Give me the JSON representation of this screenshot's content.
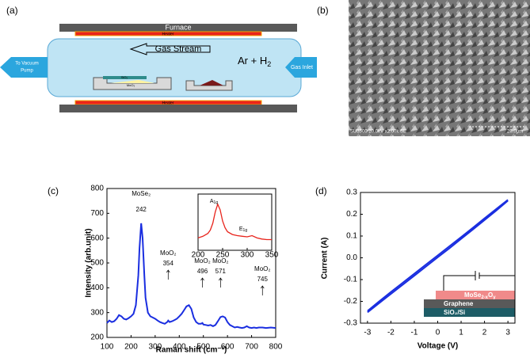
{
  "panel_labels": [
    "(a)",
    "(b)",
    "(c)",
    "(d)"
  ],
  "diagram": {
    "furnace": "Furnace",
    "heater_top": "Heater",
    "heater_bottom": "Heater",
    "gas_stream": "Gas Stream",
    "gas": {
      "base": "Ar + H",
      "sub": "2"
    },
    "inlet": "Gas Inlet",
    "outlet": [
      "To Vacuum",
      "Pump"
    ],
    "substrate": "SiO₂",
    "powder": "MoO₃"
  },
  "image": {
    "info": "SU3500 20.0kV x2.00k SE",
    "scale": "20.0μm"
  },
  "chart_data": [
    {
      "type": "line",
      "xlabel": "Raman shift (cm⁻¹)",
      "ylabel": "Intensity (arb.unit)",
      "color": "#1a2ee0",
      "xlim": [
        100,
        800
      ],
      "xticks": [
        100,
        200,
        300,
        400,
        500,
        600,
        700,
        800
      ],
      "ylim": [
        200,
        800
      ],
      "yticks": [
        200,
        300,
        400,
        500,
        600,
        700,
        800
      ],
      "x": [
        100,
        110,
        120,
        130,
        140,
        150,
        160,
        170,
        180,
        190,
        200,
        210,
        220,
        230,
        235,
        242,
        248,
        255,
        260,
        270,
        280,
        290,
        300,
        310,
        320,
        330,
        340,
        350,
        354,
        360,
        370,
        380,
        390,
        400,
        410,
        420,
        430,
        440,
        450,
        460,
        470,
        480,
        490,
        496,
        500,
        510,
        520,
        530,
        540,
        550,
        560,
        571,
        580,
        590,
        600,
        610,
        620,
        630,
        640,
        650,
        660,
        670,
        680,
        690,
        700,
        710,
        720,
        730,
        745,
        760,
        780,
        800
      ],
      "values": [
        258,
        268,
        262,
        265,
        275,
        290,
        285,
        275,
        272,
        278,
        285,
        295,
        330,
        450,
        560,
        660,
        600,
        450,
        360,
        300,
        285,
        280,
        275,
        268,
        262,
        258,
        255,
        262,
        268,
        262,
        265,
        270,
        275,
        285,
        295,
        310,
        325,
        330,
        315,
        280,
        262,
        255,
        255,
        258,
        252,
        250,
        248,
        250,
        245,
        250,
        265,
        282,
        285,
        280,
        262,
        250,
        245,
        240,
        242,
        240,
        238,
        240,
        245,
        240,
        238,
        240,
        238,
        240,
        240,
        238,
        240,
        238
      ],
      "annotations": [
        {
          "text": "MoSe₂",
          "x": 242
        },
        {
          "text": "MoO₂",
          "x": 354
        },
        {
          "text": "MoO₂",
          "x": 496
        },
        {
          "text": "MoO₂",
          "x": 571
        },
        {
          "text": "MoO₂",
          "x": 745
        }
      ],
      "inset": {
        "color": "#e8241c",
        "xlim": [
          200,
          350
        ],
        "xticks": [
          200,
          250,
          300,
          350
        ],
        "ylim": [
          0,
          100
        ],
        "x": [
          200,
          210,
          220,
          225,
          230,
          235,
          240,
          245,
          250,
          255,
          260,
          270,
          280,
          290,
          300,
          310,
          320,
          330,
          340,
          350
        ],
        "values": [
          22,
          25,
          30,
          36,
          48,
          68,
          82,
          72,
          52,
          40,
          33,
          28,
          26,
          25,
          24,
          26,
          22,
          20,
          19,
          19
        ],
        "peaks": [
          {
            "base": "A",
            "sub": "1g"
          },
          {
            "base": "E",
            "sub": "1g"
          }
        ]
      }
    },
    {
      "type": "line",
      "xlabel": "Voltage (V)",
      "ylabel": "Current (A)",
      "color": "#1a2ee0",
      "xlim": [
        -3.3,
        3.3
      ],
      "xticks": [
        -3,
        -2,
        -1,
        0,
        1,
        2,
        3
      ],
      "ylim": [
        -0.3,
        0.3
      ],
      "yticks": [
        -0.3,
        -0.2,
        -0.1,
        {
          "value": 0,
          "label": "0.0"
        },
        0.1,
        0.2,
        0.3
      ],
      "x": [
        -3,
        -2.5,
        -2,
        -1.5,
        -1,
        -0.5,
        0,
        0.5,
        1,
        1.5,
        2,
        2.5,
        3
      ],
      "series": [
        {
          "color": "#1a2ee0",
          "values": [
            -0.25,
            -0.208,
            -0.166,
            -0.124,
            -0.082,
            -0.04,
            0.002,
            0.044,
            0.087,
            0.13,
            0.173,
            0.217,
            0.262
          ]
        },
        {
          "color": "#1a2ee0",
          "values": [
            -0.244,
            -0.2,
            -0.157,
            -0.115,
            -0.073,
            -0.031,
            0.011,
            0.053,
            0.095,
            0.138,
            0.181,
            0.224,
            0.266
          ]
        }
      ],
      "schematic": {
        "top": [
          {
            "t": "MoSe"
          },
          {
            "t": "2-x",
            "sub": true
          },
          {
            "t": "O"
          },
          {
            "t": "y",
            "sub": true
          }
        ],
        "middle": "Graphene",
        "bottom": "SiO₂/Si"
      }
    }
  ]
}
